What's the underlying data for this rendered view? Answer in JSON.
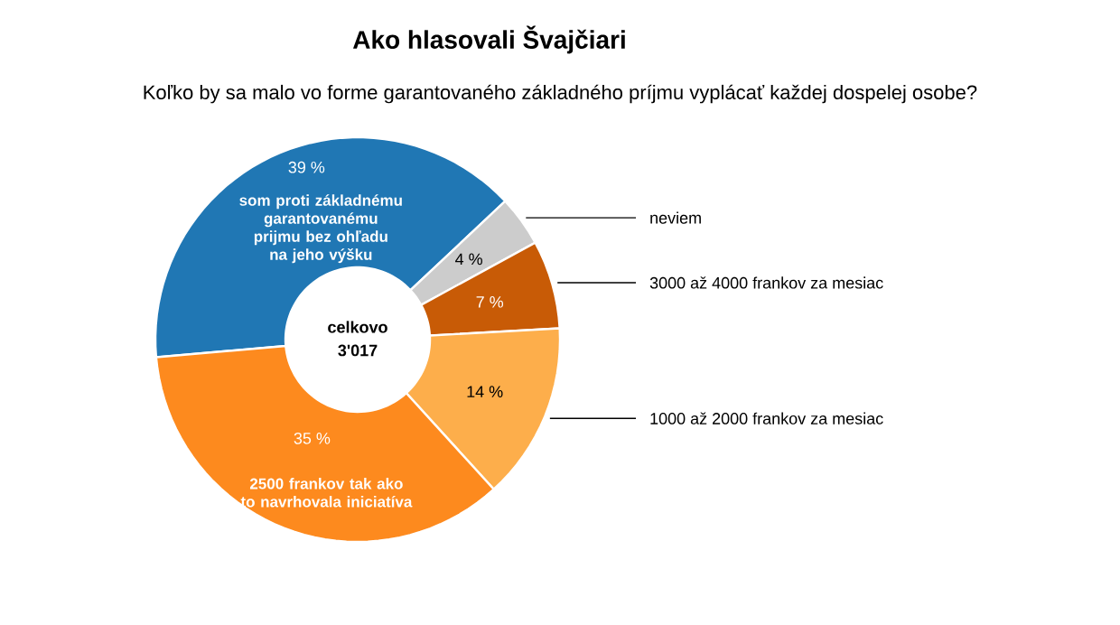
{
  "chart_data": {
    "type": "donut",
    "title": "Ako hlasovali Švajčiari",
    "subtitle": "Koľko by sa malo vo forme garantovaného základného príjmu vyplácať každej dospelej osobe?",
    "categories": [
      "som proti základnému garantovanému prijmu bez ohľadu na jeho výšku",
      "neviem",
      "3000 až 4000 frankov za mesiac",
      "1000 až 2000 frankov za mesiac",
      "2500 frankov tak ako to navrhovala iniciatíva"
    ],
    "values": [
      39,
      4,
      7,
      14,
      35
    ],
    "value_labels": [
      "39 %",
      "4 %",
      "7 %",
      "14 %",
      "35 %"
    ],
    "colors": [
      "#2077b4",
      "#cccccc",
      "#c85b06",
      "#fdae4b",
      "#fd8a1e"
    ],
    "annotations": [
      "celkovo",
      "3'017"
    ]
  }
}
